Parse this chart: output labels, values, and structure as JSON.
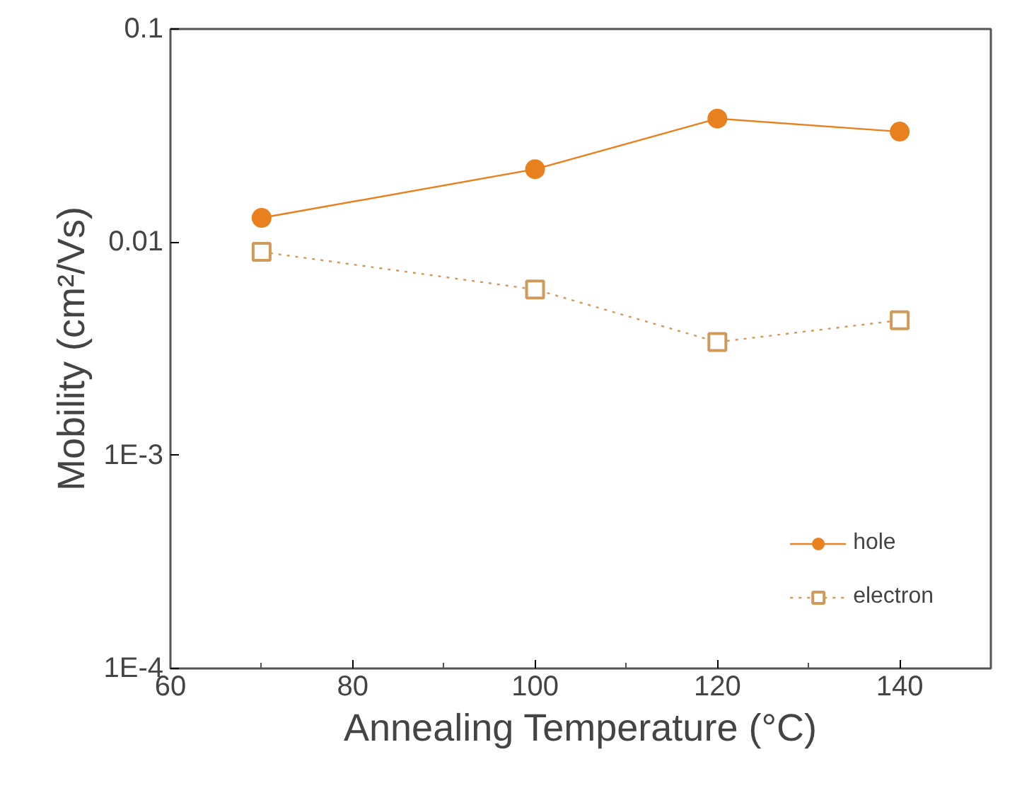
{
  "chart_data": {
    "type": "line",
    "xlabel": "Annealing Temperature (°C)",
    "ylabel": "Mobility (cm²/Vs)",
    "log": "y",
    "xlim": [
      60,
      150
    ],
    "xticks": [
      60,
      80,
      100,
      120,
      140
    ],
    "ylim": [
      0.0001,
      0.1
    ],
    "yticks": [
      {
        "value": 0.0001,
        "label": "1E-4"
      },
      {
        "value": 0.001,
        "label": "1E-3"
      },
      0.01,
      0.1
    ],
    "x": [
      70,
      100,
      120,
      140
    ],
    "series": [
      {
        "name": "hole",
        "color": "#e8801e",
        "values": [
          0.013,
          0.022,
          0.038,
          0.033
        ],
        "marker": "circle",
        "line_style": "solid"
      },
      {
        "name": "electron",
        "color": "#d09a5a",
        "values": [
          0.009,
          0.006,
          0.0034,
          0.0043
        ],
        "marker": "square",
        "line_style": "dotted"
      }
    ],
    "grid": false,
    "legend": "bottom right"
  }
}
